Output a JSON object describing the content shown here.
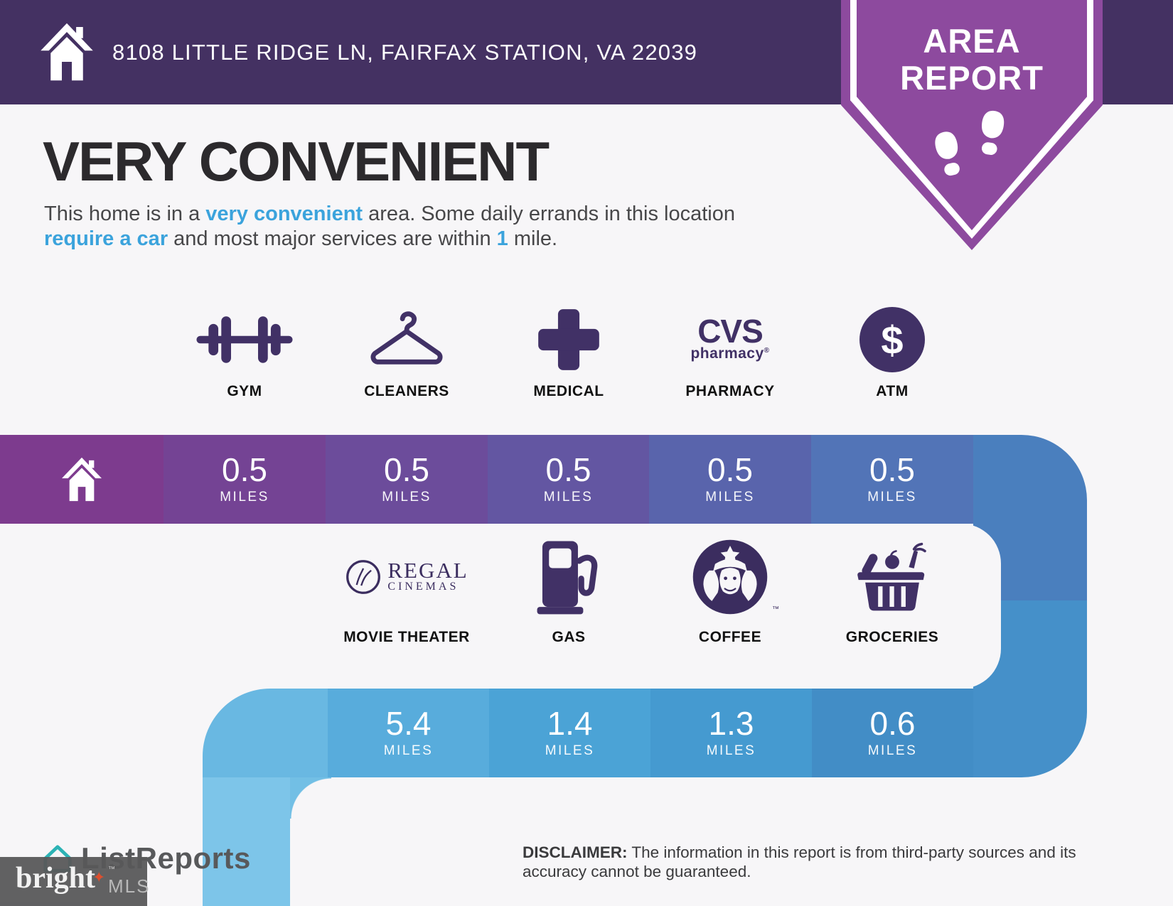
{
  "header": {
    "address": "8108 LITTLE RIDGE LN, FAIRFAX STATION, VA 22039"
  },
  "badge": {
    "line1": "AREA",
    "line2": "REPORT"
  },
  "hero": {
    "title": "VERY CONVENIENT",
    "description_segments": [
      {
        "t": "This home is in a "
      },
      {
        "t": "very convenient",
        "hl": true
      },
      {
        "t": " area. Some daily errands in this location "
      },
      {
        "t": "require a car",
        "hl": true
      },
      {
        "t": " and most major services are within "
      },
      {
        "t": "1",
        "hl": true
      },
      {
        "t": " mile."
      }
    ]
  },
  "band1": {
    "items": [
      {
        "label": "GYM",
        "icon": "dumbbell",
        "distance": "0.5",
        "unit": "MILES"
      },
      {
        "label": "CLEANERS",
        "icon": "hanger",
        "distance": "0.5",
        "unit": "MILES"
      },
      {
        "label": "MEDICAL",
        "icon": "medical-cross",
        "distance": "0.5",
        "unit": "MILES"
      },
      {
        "label": "PHARMACY",
        "icon": "cvs-logo",
        "distance": "0.5",
        "unit": "MILES",
        "brand": {
          "name": "CVS",
          "sub": "pharmacy",
          "reg": "®"
        }
      },
      {
        "label": "ATM",
        "icon": "dollar-circle",
        "distance": "0.5",
        "unit": "MILES",
        "symbol": "$"
      }
    ]
  },
  "band2": {
    "items": [
      {
        "label": "MOVIE THEATER",
        "icon": "regal-cinemas-logo",
        "distance": "5.4",
        "unit": "MILES",
        "brand": {
          "name": "REGAL",
          "sub": "CINEMAS"
        }
      },
      {
        "label": "GAS",
        "icon": "gas-pump",
        "distance": "1.4",
        "unit": "MILES"
      },
      {
        "label": "COFFEE",
        "icon": "starbucks-logo",
        "distance": "1.3",
        "unit": "MILES",
        "tm": "™"
      },
      {
        "label": "GROCERIES",
        "icon": "grocery-basket",
        "distance": "0.6",
        "unit": "MILES"
      }
    ]
  },
  "footer": {
    "disclaimer_label": "DISCLAIMER:",
    "disclaimer_text": " The information in this report is from third-party sources and its accuracy cannot be guaranteed.",
    "listreports": "ListReports",
    "bright": "bright",
    "bright_tm": "™",
    "mls": "MLS"
  },
  "colors": {
    "header_bg": "#443162",
    "badge_purple": "#8d4a9e",
    "accent_blue": "#3ba3dc",
    "icon_purple": "#413166",
    "band1_segments": [
      "#7d3b8e",
      "#744394",
      "#6c4c9b",
      "#6356a2",
      "#5964ac",
      "#5274b7"
    ],
    "band1_tail": "#4a7fbe",
    "band2_segments": [
      "#69b8e2",
      "#58acdc",
      "#4ba3d6",
      "#459ad0",
      "#428dc6"
    ],
    "band2_tail": "#4590c9",
    "stripe": "#7dc5e9",
    "listreports_teal": "#2cb3b5",
    "bright_star_orange": "#dd4f2e"
  }
}
